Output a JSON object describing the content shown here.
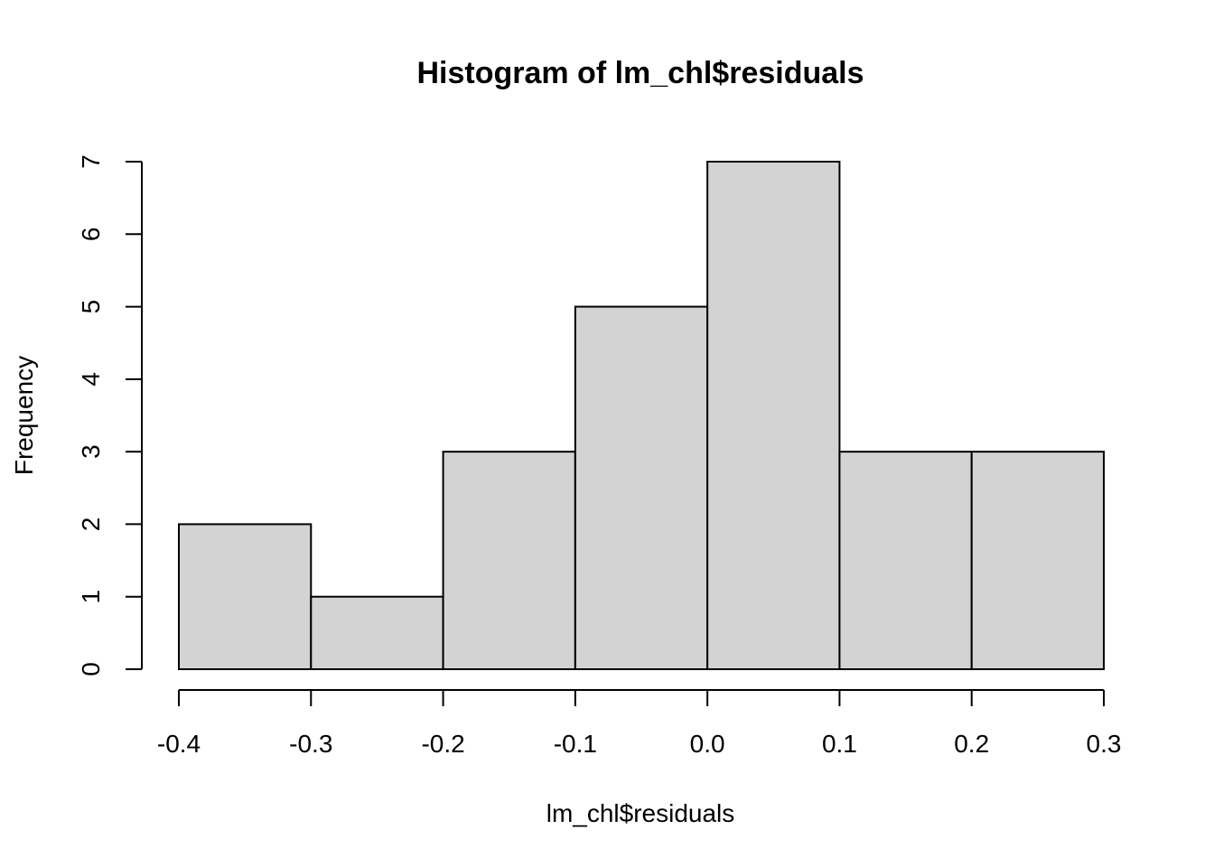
{
  "chart_data": {
    "type": "histogram",
    "title": "Histogram of lm_chl$residuals",
    "xlabel": "lm_chl$residuals",
    "ylabel": "Frequency",
    "bin_edges": [
      -0.4,
      -0.3,
      -0.2,
      -0.1,
      0.0,
      0.1,
      0.2,
      0.3
    ],
    "values": [
      2,
      1,
      3,
      5,
      7,
      3,
      3
    ],
    "xlim": [
      -0.4,
      0.3
    ],
    "ylim": [
      0,
      7
    ],
    "x_ticks": [
      -0.4,
      -0.3,
      -0.2,
      -0.1,
      0.0,
      0.1,
      0.2,
      0.3
    ],
    "x_tick_labels": [
      "-0.4",
      "-0.3",
      "-0.2",
      "-0.1",
      "0.0",
      "0.1",
      "0.2",
      "0.3"
    ],
    "y_ticks": [
      0,
      1,
      2,
      3,
      4,
      5,
      6,
      7
    ],
    "y_tick_labels": [
      "0",
      "1",
      "2",
      "3",
      "4",
      "5",
      "6",
      "7"
    ],
    "grid": false,
    "legend": "none",
    "bar_fill": "#d3d3d3",
    "bar_stroke": "#000000"
  }
}
